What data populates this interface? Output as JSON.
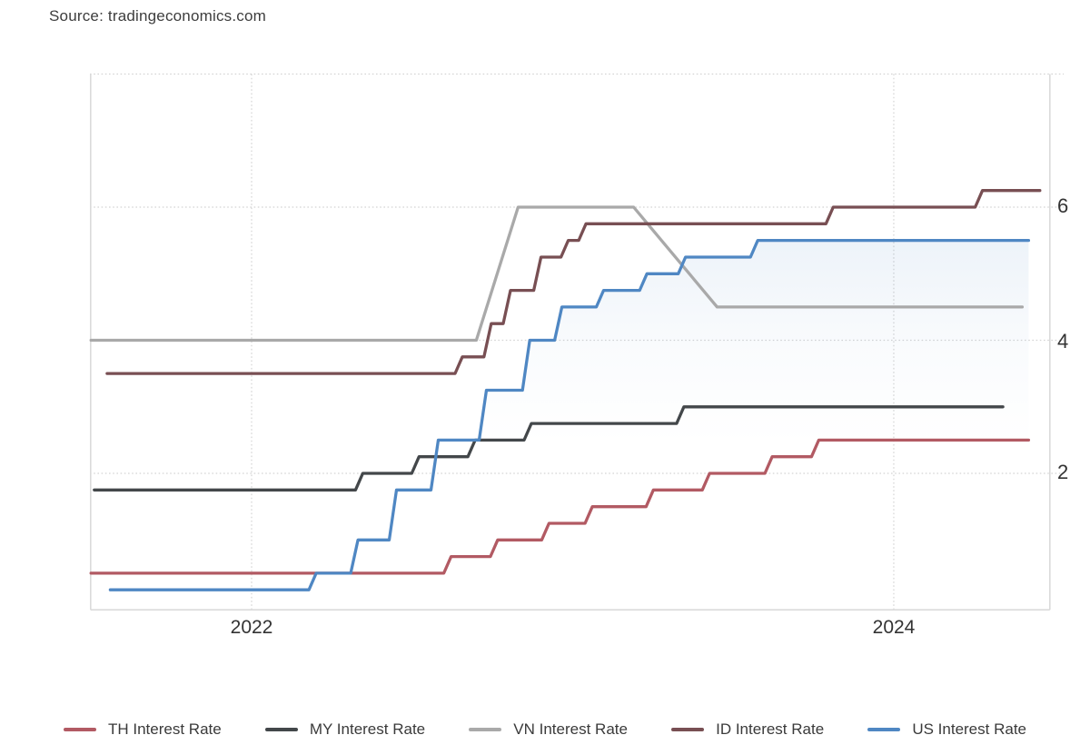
{
  "source_label": "Source: tradingeconomics.com",
  "chart_data": {
    "type": "line",
    "subtype": "step-lines",
    "title": "",
    "unit": "%",
    "grid": "dotted",
    "legend_position": "bottom",
    "x_axis": {
      "range": [
        2021.4965,
        2024.4867
      ],
      "ticks": [
        {
          "label": "2022",
          "value": 2022
        },
        {
          "label": "2024",
          "value": 2024
        }
      ]
    },
    "y_axis": {
      "side": "right",
      "range": [
        -0.061,
        8.048
      ],
      "ticks": [
        {
          "label": "6",
          "value": 6
        },
        {
          "label": "4",
          "value": 4
        },
        {
          "label": "2",
          "value": 2
        }
      ]
    },
    "series": [
      {
        "name": "VN Interest Rate",
        "color": "#a9a9a9",
        "mode": "linear",
        "end": 2024.4,
        "points": [
          [
            2021.5,
            4.0
          ],
          [
            2022.7,
            4.0
          ],
          [
            2022.83,
            6.0
          ],
          [
            2023.19,
            6.0
          ],
          [
            2023.45,
            4.5
          ],
          [
            2024.4,
            4.5
          ]
        ]
      },
      {
        "name": "MY Interest Rate",
        "color": "#43474a",
        "mode": "step",
        "end": 2024.34,
        "points": [
          [
            2021.51,
            1.75
          ],
          [
            2022.335,
            2.0
          ],
          [
            2022.51,
            2.25
          ],
          [
            2022.685,
            2.5
          ],
          [
            2022.86,
            2.75
          ],
          [
            2023.335,
            3.0
          ]
        ]
      },
      {
        "name": "TH Interest Rate",
        "color": "#b25a63",
        "mode": "step",
        "end": 2024.42,
        "points": [
          [
            2021.5,
            0.5
          ],
          [
            2022.61,
            0.75
          ],
          [
            2022.755,
            1.0
          ],
          [
            2022.915,
            1.25
          ],
          [
            2023.05,
            1.5
          ],
          [
            2023.24,
            1.75
          ],
          [
            2023.415,
            2.0
          ],
          [
            2023.61,
            2.25
          ],
          [
            2023.755,
            2.5
          ]
        ]
      },
      {
        "name": "ID Interest Rate",
        "color": "#784f53",
        "mode": "step",
        "end": 2024.455,
        "points": [
          [
            2021.55,
            3.5
          ],
          [
            2022.645,
            3.75
          ],
          [
            2022.735,
            4.25
          ],
          [
            2022.795,
            4.75
          ],
          [
            2022.89,
            5.25
          ],
          [
            2022.975,
            5.5
          ],
          [
            2023.03,
            5.75
          ],
          [
            2023.8,
            6.0
          ],
          [
            2024.265,
            6.25
          ]
        ]
      },
      {
        "name": "US Interest Rate",
        "color": "#4f87c3",
        "mode": "step",
        "area_fill": true,
        "end": 2024.42,
        "points": [
          [
            2021.56,
            0.25
          ],
          [
            2022.19,
            0.5
          ],
          [
            2022.32,
            1.0
          ],
          [
            2022.44,
            1.75
          ],
          [
            2022.57,
            2.5
          ],
          [
            2022.72,
            3.25
          ],
          [
            2022.855,
            4.0
          ],
          [
            2022.955,
            4.5
          ],
          [
            2023.085,
            4.75
          ],
          [
            2023.22,
            5.0
          ],
          [
            2023.34,
            5.25
          ],
          [
            2023.565,
            5.5
          ]
        ]
      }
    ],
    "legend_order": [
      2,
      1,
      0,
      3,
      4
    ]
  }
}
